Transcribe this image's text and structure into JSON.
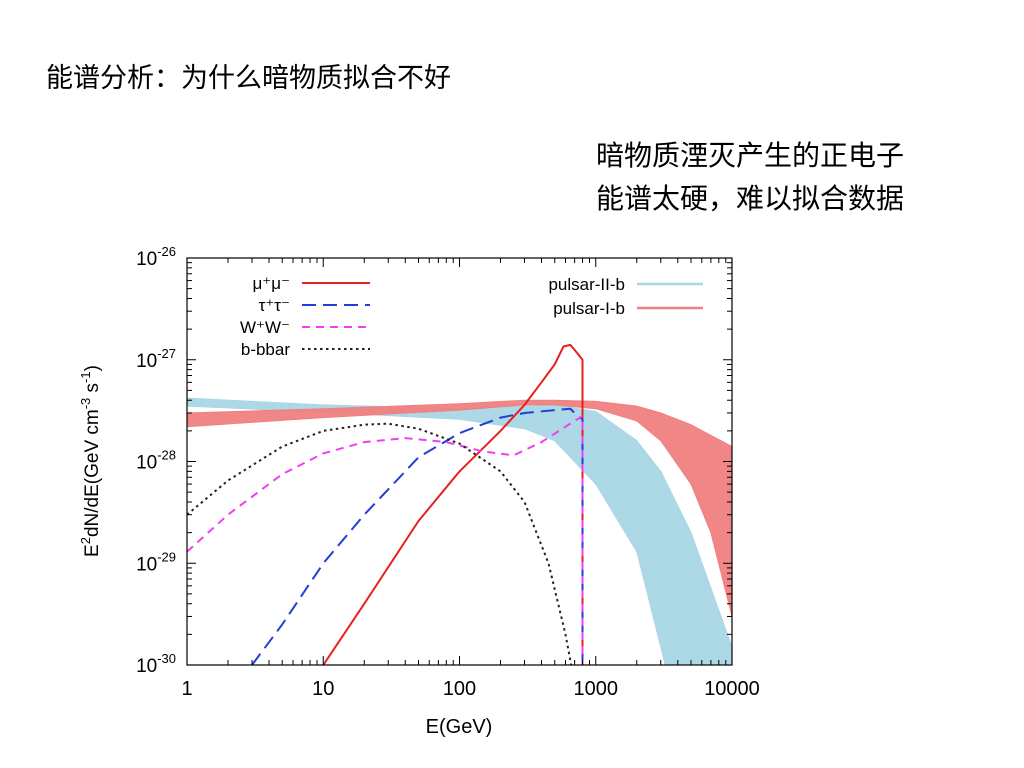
{
  "slide": {
    "title": "能谱分析：为什么暗物质拟合不好",
    "note_lines": [
      "暗物质湮灭产生的正电子",
      "能谱太硬，难以拟合数据"
    ]
  },
  "chart_data": {
    "type": "line",
    "xlabel": "E(GeV)",
    "ylabel": {
      "base": "E",
      "sup1": "2",
      "mid": "dN/dE(GeV cm",
      "sup2": "-3",
      "mid2": " s",
      "sup3": "-1",
      "end": ")"
    },
    "x_scale": "log",
    "y_scale": "log",
    "xlim": [
      1,
      10000
    ],
    "ylim": [
      1e-30,
      1e-26
    ],
    "x_ticks": [
      {
        "value": 1,
        "label": "1"
      },
      {
        "value": 10,
        "label": "10"
      },
      {
        "value": 100,
        "label": "100"
      },
      {
        "value": 1000,
        "label": "1000"
      },
      {
        "value": 10000,
        "label": "10000"
      }
    ],
    "y_ticks": [
      {
        "value": 1e-30,
        "base": "10",
        "exp": "-30"
      },
      {
        "value": 1e-29,
        "base": "10",
        "exp": "-29"
      },
      {
        "value": 1e-28,
        "base": "10",
        "exp": "-28"
      },
      {
        "value": 1e-27,
        "base": "10",
        "exp": "-27"
      },
      {
        "value": 1e-26,
        "base": "10",
        "exp": "-26"
      }
    ],
    "grid": false,
    "legend_left": [
      {
        "label": "μ⁺μ⁻",
        "color": "#e8201e",
        "dash": "solid"
      },
      {
        "label": "τ⁺τ⁻",
        "color": "#1f3fd8",
        "dash": "long"
      },
      {
        "label": "W⁺W⁻",
        "color": "#f03ef0",
        "dash": "medium"
      },
      {
        "label": "b-bbar",
        "color": "#222222",
        "dash": "dotted"
      }
    ],
    "legend_right": [
      {
        "label": "pulsar-II-b",
        "color": "#a9d6e5"
      },
      {
        "label": "pulsar-I-b",
        "color": "#f08080"
      }
    ],
    "series": [
      {
        "name": "μ⁺μ⁻",
        "color": "#e8201e",
        "dash": "solid",
        "x": [
          10,
          20,
          50,
          100,
          200,
          300,
          400,
          500,
          580,
          650,
          700,
          800,
          800
        ],
        "y": [
          1e-30,
          4e-30,
          2.6e-29,
          8e-29,
          2e-28,
          3.6e-28,
          6e-28,
          9e-28,
          1.35e-27,
          1.4e-27,
          1.25e-27,
          1e-27,
          1e-30
        ]
      },
      {
        "name": "τ⁺τ⁻",
        "color": "#1f3fd8",
        "dash": "long",
        "x": [
          3,
          5,
          10,
          20,
          50,
          100,
          200,
          300,
          500,
          650,
          700,
          800,
          800
        ],
        "y": [
          1e-30,
          2.5e-30,
          1e-29,
          3e-29,
          1.1e-28,
          1.9e-28,
          2.7e-28,
          3e-28,
          3.2e-28,
          3.3e-28,
          3e-28,
          2.6e-28,
          1e-30
        ]
      },
      {
        "name": "W⁺W⁻",
        "color": "#f03ef0",
        "dash": "medium",
        "x": [
          1,
          2,
          5,
          10,
          20,
          40,
          80,
          150,
          250,
          400,
          600,
          800,
          800
        ],
        "y": [
          1.3e-29,
          3e-29,
          7.5e-29,
          1.2e-28,
          1.55e-28,
          1.7e-28,
          1.55e-28,
          1.25e-28,
          1.15e-28,
          1.55e-28,
          2.2e-28,
          2.8e-28,
          1e-30
        ]
      },
      {
        "name": "b-bbar",
        "color": "#222222",
        "dash": "dotted",
        "x": [
          1,
          2,
          5,
          10,
          20,
          30,
          50,
          100,
          200,
          300,
          450,
          600,
          660
        ],
        "y": [
          3e-29,
          6.5e-29,
          1.4e-28,
          2e-28,
          2.3e-28,
          2.35e-28,
          2.1e-28,
          1.5e-28,
          8e-29,
          4e-29,
          1e-29,
          2e-30,
          1e-30
        ]
      }
    ],
    "bands": [
      {
        "name": "pulsar-II-b",
        "color": "#a9d6e5",
        "x": [
          1,
          10,
          100,
          300,
          500,
          1000,
          2000,
          3000,
          5000,
          10000
        ],
        "lower": [
          3.5e-28,
          3.05e-28,
          2.6e-28,
          2.1e-28,
          1.6e-28,
          6e-29,
          1.3e-29,
          1.5e-30,
          1e-31,
          1e-31
        ],
        "upper": [
          4.2e-28,
          3.6e-28,
          3.3e-28,
          3.5e-28,
          3.6e-28,
          3.1e-28,
          1.6e-28,
          8e-29,
          2e-29,
          1.5e-30
        ]
      },
      {
        "name": "pulsar-I-b",
        "color": "#f08080",
        "x": [
          1,
          10,
          100,
          300,
          500,
          1000,
          2000,
          3000,
          5000,
          7000,
          10000
        ],
        "lower": [
          2.2e-28,
          2.7e-28,
          3.2e-28,
          3.6e-28,
          3.6e-28,
          3.3e-28,
          2.5e-28,
          1.6e-28,
          6e-29,
          2e-29,
          3e-30
        ],
        "upper": [
          3e-28,
          3.3e-28,
          3.7e-28,
          4e-28,
          4e-28,
          3.9e-28,
          3.5e-28,
          3e-28,
          2.3e-28,
          1.8e-28,
          1.4e-28
        ]
      }
    ]
  }
}
